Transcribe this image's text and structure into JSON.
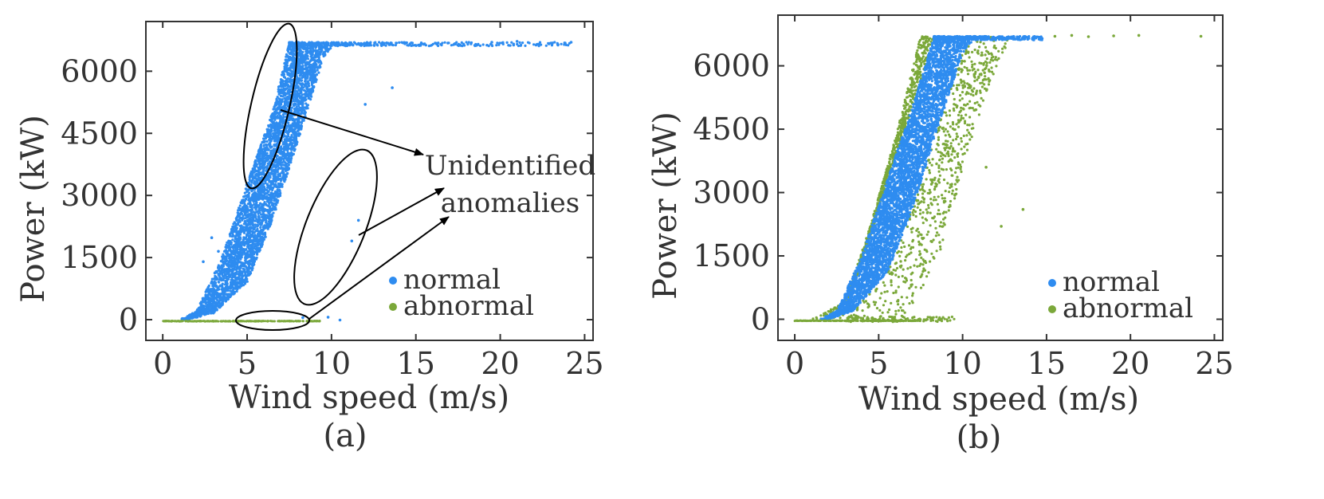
{
  "chart_data": [
    {
      "type": "scatter",
      "caption": "(a)",
      "xlabel": "Wind speed (m/s)",
      "ylabel": "Power (kW)",
      "xlim": [
        -1,
        25.5
      ],
      "ylim": [
        -500,
        7200
      ],
      "xticks": [
        "0",
        "5",
        "10",
        "15",
        "20",
        "25"
      ],
      "yticks": [
        "0",
        "1500",
        "3000",
        "4500",
        "6000"
      ],
      "legend": {
        "position": "lower-right",
        "entries": [
          "normal",
          "abnormal"
        ]
      },
      "annotation": {
        "lines": [
          "Unidentified",
          "anomalies"
        ]
      },
      "series": [
        {
          "name": "normal",
          "color": "#2e8cf0",
          "band_lower_v": [
            [
              1.5,
              0
            ],
            [
              3.0,
              150
            ],
            [
              5.0,
              900
            ],
            [
              6.5,
              2400
            ],
            [
              8.0,
              4300
            ],
            [
              9.5,
              6300
            ],
            [
              10.2,
              6700
            ]
          ],
          "band_upper_v": [
            [
              1.0,
              0
            ],
            [
              2.0,
              200
            ],
            [
              3.5,
              1500
            ],
            [
              5.0,
              3300
            ],
            [
              6.5,
              5000
            ],
            [
              7.5,
              6700
            ]
          ],
          "rated_power_kw": 6700,
          "max_wind_speed": 24.2,
          "outliers": [
            [
              2.9,
              1980
            ],
            [
              3.3,
              1650
            ],
            [
              2.4,
              1400
            ],
            [
              13.6,
              5600
            ],
            [
              12.0,
              5200
            ],
            [
              9.8,
              60
            ],
            [
              10.5,
              -10
            ],
            [
              8.3,
              50
            ],
            [
              11.2,
              1900
            ],
            [
              11.6,
              2400
            ],
            [
              16.9,
              6680
            ],
            [
              19.5,
              6700
            ],
            [
              21.0,
              6720
            ],
            [
              24.2,
              6700
            ]
          ]
        },
        {
          "name": "abnormal",
          "color": "#7ba83a",
          "points": [
            [
              0.5,
              -40
            ],
            [
              1.0,
              -40
            ],
            [
              1.5,
              -40
            ],
            [
              2.0,
              -40
            ],
            [
              2.5,
              -40
            ],
            [
              3.0,
              -40
            ],
            [
              3.5,
              -40
            ],
            [
              4.0,
              -40
            ],
            [
              4.5,
              -40
            ],
            [
              5.5,
              -40
            ],
            [
              7.5,
              -30
            ],
            [
              8.7,
              -10
            ],
            [
              9.3,
              -30
            ]
          ]
        }
      ]
    },
    {
      "type": "scatter",
      "caption": "(b)",
      "xlabel": "Wind speed (m/s)",
      "ylabel": "Power (kW)",
      "xlim": [
        -1,
        25.5
      ],
      "ylim": [
        -500,
        7200
      ],
      "xticks": [
        "0",
        "5",
        "10",
        "15",
        "20",
        "25"
      ],
      "yticks": [
        "0",
        "1500",
        "3000",
        "4500",
        "6000"
      ],
      "legend": {
        "position": "lower-right",
        "entries": [
          "normal",
          "abnormal"
        ]
      },
      "series": [
        {
          "name": "normal",
          "color": "#2e8cf0",
          "band_lower_v": [
            [
              2.0,
              0
            ],
            [
              3.5,
              200
            ],
            [
              5.5,
              1100
            ],
            [
              7.0,
              2600
            ],
            [
              8.5,
              4500
            ],
            [
              10.0,
              6300
            ],
            [
              10.8,
              6700
            ]
          ],
          "band_upper_v": [
            [
              1.5,
              0
            ],
            [
              2.5,
              200
            ],
            [
              4.0,
              1500
            ],
            [
              5.5,
              3300
            ],
            [
              7.0,
              5000
            ],
            [
              8.3,
              6700
            ]
          ],
          "rated_power_kw": 6700,
          "max_wind_speed": 14.8
        },
        {
          "name": "abnormal",
          "color": "#7ba83a",
          "band_left_v": [
            [
              1.0,
              0
            ],
            [
              3.0,
              400
            ],
            [
              4.5,
              2200
            ],
            [
              6.0,
              4300
            ],
            [
              7.5,
              6700
            ]
          ],
          "band_right_v": [
            [
              6.5,
              0
            ],
            [
              8.5,
              1400
            ],
            [
              10.0,
              3500
            ],
            [
              11.5,
              5500
            ],
            [
              13.0,
              6700
            ]
          ],
          "tail_points": [
            [
              15.5,
              6700
            ],
            [
              16.5,
              6720
            ],
            [
              17.5,
              6690
            ],
            [
              19.0,
              6710
            ],
            [
              20.5,
              6720
            ],
            [
              24.2,
              6700
            ],
            [
              13.6,
              2600
            ],
            [
              12.3,
              2200
            ],
            [
              11.4,
              3600
            ]
          ]
        }
      ]
    }
  ]
}
